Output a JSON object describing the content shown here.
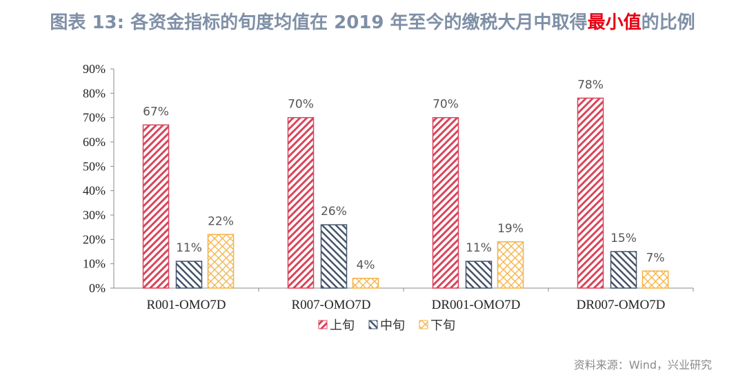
{
  "title": {
    "prefix": "图表 13: 各资金指标的旬度均值在  2019  年至今的缴税大月中取得",
    "highlight": "最小值",
    "suffix": "的比例"
  },
  "source": "资料来源：Wind，兴业研究",
  "colors": {
    "title": "#7f8fa6",
    "highlight": "#e60012",
    "上旬": "#d9445a",
    "中旬": "#44546a",
    "下旬": "#f5b041"
  },
  "chart_data": {
    "type": "bar",
    "categories": [
      "R001-OMO7D",
      "R007-OMO7D",
      "DR001-OMO7D",
      "DR007-OMO7D"
    ],
    "series": [
      {
        "name": "上旬",
        "values": [
          67,
          70,
          70,
          78
        ],
        "labels": [
          "67%",
          "70%",
          "70%",
          "78%"
        ],
        "pattern": "diagonal-down"
      },
      {
        "name": "中旬",
        "values": [
          11,
          26,
          11,
          15
        ],
        "labels": [
          "11%",
          "26%",
          "11%",
          "15%"
        ],
        "pattern": "diagonal-up"
      },
      {
        "name": "下旬",
        "values": [
          22,
          4,
          19,
          7
        ],
        "labels": [
          "22%",
          "4%",
          "19%",
          "7%"
        ],
        "pattern": "crosshatch"
      }
    ],
    "yticks": [
      "0%",
      "10%",
      "20%",
      "30%",
      "40%",
      "50%",
      "60%",
      "70%",
      "80%",
      "90%"
    ],
    "ylim": [
      0,
      90
    ],
    "grid": false,
    "legend": "bottom"
  }
}
